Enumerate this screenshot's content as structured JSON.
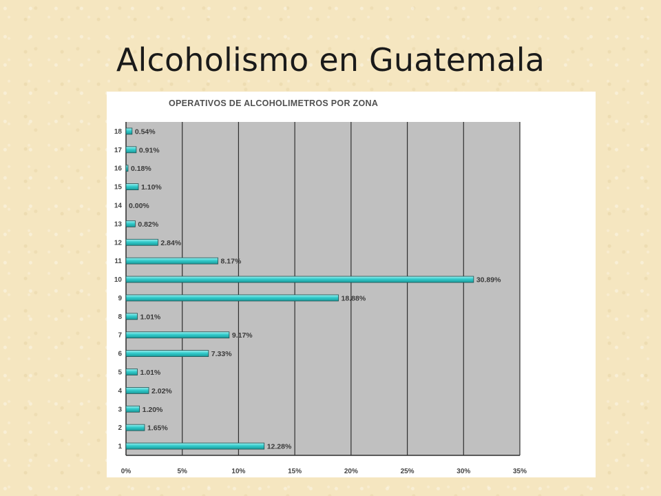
{
  "slide": {
    "title": "Alcoholismo en Guatemala"
  },
  "chart_data": {
    "type": "bar",
    "orientation": "horizontal",
    "title": "OPERATIVOS DE ALCOHOLIMETROS POR ZONA",
    "categories": [
      "1",
      "2",
      "3",
      "4",
      "5",
      "6",
      "7",
      "8",
      "9",
      "10",
      "11",
      "12",
      "13",
      "14",
      "15",
      "16",
      "17",
      "18"
    ],
    "values": [
      12.28,
      1.65,
      1.2,
      2.02,
      1.01,
      7.33,
      9.17,
      1.01,
      18.88,
      30.89,
      8.17,
      2.84,
      0.82,
      0.0,
      1.1,
      0.18,
      0.91,
      0.54
    ],
    "data_labels": [
      "12.28%",
      "1.65%",
      "1.20%",
      "2.02%",
      "1.01%",
      "7.33%",
      "9.17%",
      "1.01%",
      "18.88%",
      "30.89%",
      "8.17%",
      "2.84%",
      "0.82%",
      "0.00%",
      "1.10%",
      "0.18%",
      "0.91%",
      "0.54%"
    ],
    "xticks": [
      "0%",
      "5%",
      "10%",
      "15%",
      "20%",
      "25%",
      "30%",
      "35%"
    ],
    "xlim": [
      0,
      35
    ],
    "grid": true,
    "bar_color": "#33cccc",
    "plot_background": "#c0c0c0"
  }
}
